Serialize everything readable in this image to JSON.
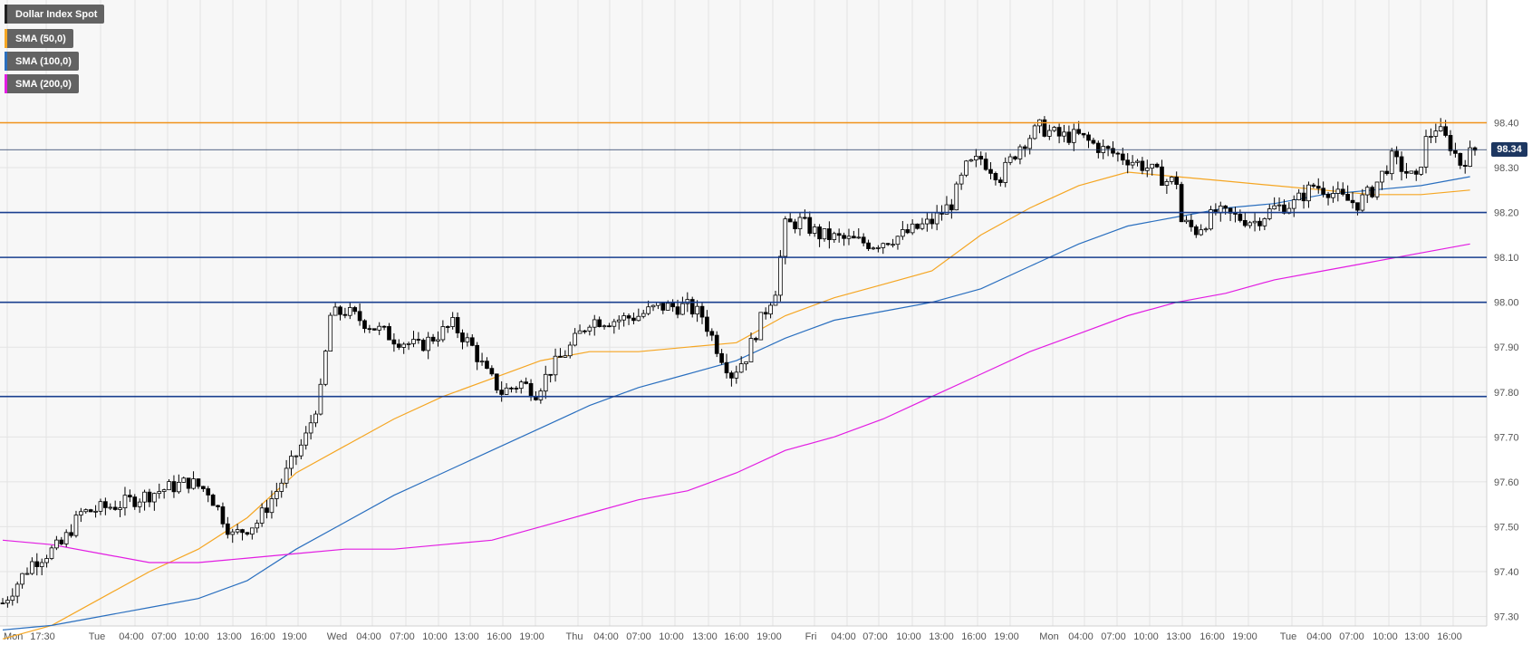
{
  "legend": {
    "instrument": "Dollar Index Spot",
    "sma50": "SMA (50,0)",
    "sma100": "SMA (100,0)",
    "sma200": "SMA (200,0)"
  },
  "current_price_label": "98.34",
  "colors": {
    "background": "#ffffff",
    "plot_background": "#f7f7f7",
    "grid": "#e3e3e3",
    "sma50": "#f5a623",
    "sma100": "#2a6fbf",
    "sma200": "#e21de2",
    "level_lines": "#1a3f8f",
    "resistance_line": "#f0921a",
    "price_tag": "#1d3761",
    "legend_box": "#636363",
    "candle_up": "#ffffff",
    "candle_down": "#000000"
  },
  "chart_data": {
    "type": "candlestick",
    "instrument": "Dollar Index Spot",
    "timeframe": "30min",
    "ylim": [
      97.2,
      98.5
    ],
    "y_ticks": [
      "97.30",
      "97.40",
      "97.50",
      "97.60",
      "97.70",
      "97.80",
      "97.90",
      "98.00",
      "98.10",
      "98.20",
      "98.30",
      "98.40"
    ],
    "x_ticks": [
      "Mon",
      "17:30",
      "Tue",
      "04:00",
      "07:00",
      "10:00",
      "13:00",
      "16:00",
      "19:00",
      "Wed",
      "04:00",
      "07:00",
      "10:00",
      "13:00",
      "16:00",
      "19:00",
      "Thu",
      "04:00",
      "07:00",
      "10:00",
      "13:00",
      "16:00",
      "19:00",
      "Fri",
      "04:00",
      "07:00",
      "10:00",
      "13:00",
      "16:00",
      "19:00",
      "Mon",
      "04:00",
      "07:00",
      "10:00",
      "13:00",
      "16:00",
      "19:00",
      "Tue",
      "04:00",
      "07:00",
      "10:00",
      "13:00",
      "16:00"
    ],
    "horizontal_levels": [
      98.4,
      98.2,
      98.1,
      98.0,
      97.79
    ],
    "current_price": 98.34,
    "price_path": [
      [
        0,
        97.33
      ],
      [
        6,
        97.42
      ],
      [
        12,
        97.46
      ],
      [
        16,
        97.53
      ],
      [
        24,
        97.55
      ],
      [
        32,
        97.58
      ],
      [
        38,
        97.6
      ],
      [
        42,
        97.58
      ],
      [
        45,
        97.52
      ],
      [
        47,
        97.48
      ],
      [
        52,
        97.51
      ],
      [
        56,
        97.58
      ],
      [
        62,
        97.7
      ],
      [
        65,
        97.8
      ],
      [
        67,
        97.97
      ],
      [
        70,
        97.98
      ],
      [
        75,
        97.95
      ],
      [
        80,
        97.92
      ],
      [
        85,
        97.9
      ],
      [
        92,
        97.95
      ],
      [
        96,
        97.9
      ],
      [
        99,
        97.84
      ],
      [
        102,
        97.8
      ],
      [
        106,
        97.82
      ],
      [
        109,
        97.8
      ],
      [
        112,
        97.85
      ],
      [
        116,
        97.9
      ],
      [
        120,
        97.96
      ],
      [
        125,
        97.96
      ],
      [
        130,
        97.97
      ],
      [
        134,
        97.99
      ],
      [
        140,
        97.99
      ],
      [
        143,
        97.97
      ],
      [
        146,
        97.9
      ],
      [
        149,
        97.84
      ],
      [
        152,
        97.88
      ],
      [
        155,
        97.96
      ],
      [
        158,
        98.03
      ],
      [
        160,
        98.17
      ],
      [
        163,
        98.18
      ],
      [
        167,
        98.15
      ],
      [
        172,
        98.14
      ],
      [
        178,
        98.13
      ],
      [
        184,
        98.15
      ],
      [
        190,
        98.18
      ],
      [
        194,
        98.22
      ],
      [
        197,
        98.3
      ],
      [
        200,
        98.32
      ],
      [
        204,
        98.28
      ],
      [
        208,
        98.35
      ],
      [
        212,
        98.39
      ],
      [
        216,
        98.37
      ],
      [
        220,
        98.37
      ],
      [
        225,
        98.34
      ],
      [
        230,
        98.32
      ],
      [
        234,
        98.3
      ],
      [
        238,
        98.27
      ],
      [
        240,
        98.27
      ],
      [
        241,
        98.18
      ],
      [
        244,
        98.16
      ],
      [
        248,
        98.2
      ],
      [
        252,
        98.19
      ],
      [
        256,
        98.18
      ],
      [
        260,
        98.21
      ],
      [
        264,
        98.22
      ],
      [
        268,
        98.26
      ],
      [
        271,
        98.25
      ],
      [
        274,
        98.23
      ],
      [
        277,
        98.22
      ],
      [
        280,
        98.25
      ],
      [
        284,
        98.32
      ],
      [
        287,
        98.29
      ],
      [
        289,
        98.27
      ],
      [
        291,
        98.36
      ],
      [
        293,
        98.39
      ],
      [
        296,
        98.35
      ],
      [
        298,
        98.31
      ],
      [
        301,
        98.34
      ]
    ],
    "series": [
      {
        "name": "SMA (50,0)",
        "x": [
          0,
          10,
          20,
          30,
          40,
          50,
          60,
          70,
          80,
          90,
          100,
          110,
          120,
          130,
          140,
          150,
          160,
          170,
          180,
          190,
          200,
          210,
          220,
          230,
          240,
          250,
          260,
          270,
          280,
          290,
          300
        ],
        "values": [
          97.25,
          97.28,
          97.34,
          97.4,
          97.45,
          97.52,
          97.62,
          97.68,
          97.74,
          97.79,
          97.83,
          97.87,
          97.89,
          97.89,
          97.9,
          97.91,
          97.97,
          98.01,
          98.04,
          98.07,
          98.15,
          98.21,
          98.26,
          98.29,
          98.28,
          98.27,
          98.26,
          98.25,
          98.24,
          98.24,
          98.25
        ]
      },
      {
        "name": "SMA (100,0)",
        "x": [
          0,
          10,
          20,
          30,
          40,
          50,
          60,
          70,
          80,
          90,
          100,
          110,
          120,
          130,
          140,
          150,
          160,
          170,
          180,
          190,
          200,
          210,
          220,
          230,
          240,
          250,
          260,
          270,
          280,
          290,
          300
        ],
        "values": [
          97.27,
          97.28,
          97.3,
          97.32,
          97.34,
          97.38,
          97.45,
          97.51,
          97.57,
          97.62,
          97.67,
          97.72,
          97.77,
          97.81,
          97.84,
          97.87,
          97.92,
          97.96,
          97.98,
          98.0,
          98.03,
          98.08,
          98.13,
          98.17,
          98.19,
          98.21,
          98.22,
          98.24,
          98.25,
          98.26,
          98.28
        ]
      },
      {
        "name": "SMA (200,0)",
        "x": [
          0,
          10,
          20,
          30,
          40,
          50,
          60,
          70,
          80,
          90,
          100,
          110,
          120,
          130,
          140,
          150,
          160,
          170,
          180,
          190,
          200,
          210,
          220,
          230,
          240,
          250,
          260,
          270,
          280,
          290,
          300
        ],
        "values": [
          97.47,
          97.46,
          97.44,
          97.42,
          97.42,
          97.43,
          97.44,
          97.45,
          97.45,
          97.46,
          97.47,
          97.5,
          97.53,
          97.56,
          97.58,
          97.62,
          97.67,
          97.7,
          97.74,
          97.79,
          97.84,
          97.89,
          97.93,
          97.97,
          98.0,
          98.02,
          98.05,
          98.07,
          98.09,
          98.11,
          98.13
        ]
      }
    ]
  }
}
